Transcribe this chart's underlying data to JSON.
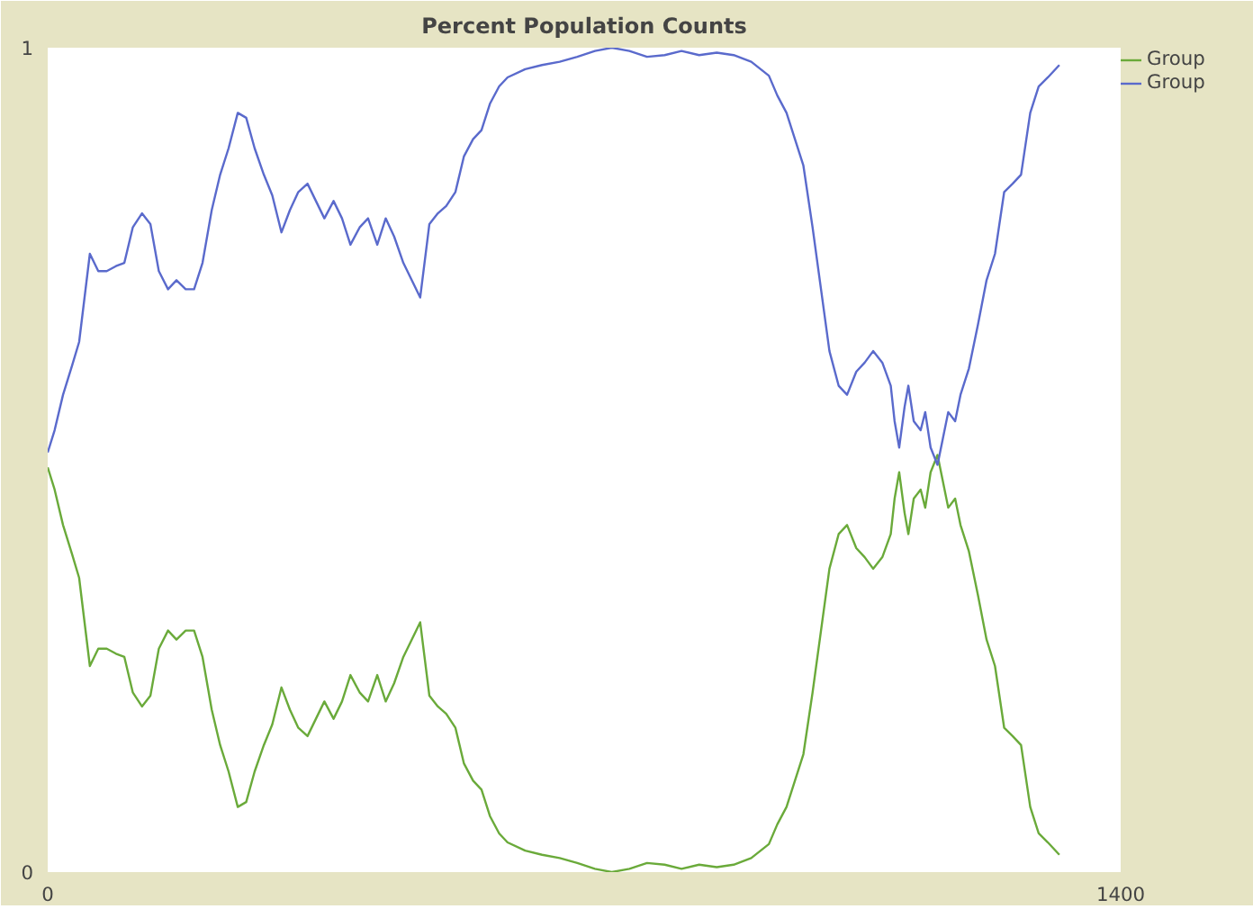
{
  "chart_data": {
    "type": "line",
    "title": "Percent Population Counts",
    "xlim": [
      0,
      1400
    ],
    "xticks": [
      0,
      1400
    ],
    "ylim": [
      0,
      1
    ],
    "yticks": [
      0,
      1
    ],
    "legend": "top right",
    "series": [
      {
        "name": "Group",
        "color": "#6aaa3a",
        "x": [
          0,
          9,
          20,
          32,
          41,
          55,
          66,
          77,
          89,
          100,
          111,
          123,
          134,
          145,
          157,
          168,
          180,
          191,
          202,
          214,
          225,
          236,
          248,
          259,
          270,
          282,
          293,
          305,
          316,
          327,
          339,
          350,
          361,
          373,
          384,
          395,
          407,
          418,
          430,
          441,
          452,
          464,
          475,
          486,
          498,
          509,
          520,
          532,
          543,
          555,
          566,
          577,
          589,
          600,
          623,
          645,
          668,
          691,
          714,
          736,
          759,
          782,
          805,
          827,
          850,
          873,
          895,
          918,
          941,
          952,
          964,
          975,
          986,
          998,
          1009,
          1020,
          1032,
          1043,
          1055,
          1066,
          1077,
          1089,
          1100,
          1105,
          1111,
          1118,
          1123,
          1130,
          1139,
          1145,
          1152,
          1161,
          1168,
          1175,
          1184,
          1191,
          1202,
          1214,
          1225,
          1236,
          1248,
          1259,
          1270,
          1282,
          1293,
          1305,
          1320
        ],
        "values": [
          0.491,
          0.464,
          0.421,
          0.385,
          0.357,
          0.25,
          0.271,
          0.271,
          0.265,
          0.261,
          0.218,
          0.201,
          0.214,
          0.271,
          0.293,
          0.282,
          0.293,
          0.293,
          0.261,
          0.197,
          0.154,
          0.122,
          0.079,
          0.085,
          0.122,
          0.154,
          0.179,
          0.224,
          0.197,
          0.175,
          0.165,
          0.186,
          0.207,
          0.186,
          0.207,
          0.239,
          0.218,
          0.207,
          0.239,
          0.207,
          0.229,
          0.261,
          0.282,
          0.303,
          0.214,
          0.201,
          0.192,
          0.175,
          0.132,
          0.111,
          0.1,
          0.068,
          0.047,
          0.036,
          0.026,
          0.021,
          0.017,
          0.011,
          0.004,
          0.0,
          0.004,
          0.011,
          0.009,
          0.004,
          0.009,
          0.006,
          0.009,
          0.017,
          0.034,
          0.058,
          0.079,
          0.111,
          0.143,
          0.218,
          0.293,
          0.368,
          0.41,
          0.421,
          0.393,
          0.382,
          0.368,
          0.382,
          0.41,
          0.453,
          0.485,
          0.436,
          0.41,
          0.453,
          0.464,
          0.442,
          0.485,
          0.506,
          0.474,
          0.442,
          0.453,
          0.421,
          0.389,
          0.335,
          0.282,
          0.25,
          0.175,
          0.165,
          0.154,
          0.079,
          0.047,
          0.036,
          0.021
        ]
      },
      {
        "name": "Group",
        "color": "#5a6acc",
        "x": [
          0,
          9,
          20,
          32,
          41,
          55,
          66,
          77,
          89,
          100,
          111,
          123,
          134,
          145,
          157,
          168,
          180,
          191,
          202,
          214,
          225,
          236,
          248,
          259,
          270,
          282,
          293,
          305,
          316,
          327,
          339,
          350,
          361,
          373,
          384,
          395,
          407,
          418,
          430,
          441,
          452,
          464,
          475,
          486,
          498,
          509,
          520,
          532,
          543,
          555,
          566,
          577,
          589,
          600,
          623,
          645,
          668,
          691,
          714,
          736,
          759,
          782,
          805,
          827,
          850,
          873,
          895,
          918,
          941,
          952,
          964,
          975,
          986,
          998,
          1009,
          1020,
          1032,
          1043,
          1055,
          1066,
          1077,
          1089,
          1100,
          1105,
          1111,
          1118,
          1123,
          1130,
          1139,
          1145,
          1152,
          1161,
          1168,
          1175,
          1184,
          1191,
          1202,
          1214,
          1225,
          1236,
          1248,
          1259,
          1270,
          1282,
          1293,
          1305,
          1320
        ],
        "values": [
          0.509,
          0.536,
          0.579,
          0.615,
          0.643,
          0.75,
          0.729,
          0.729,
          0.735,
          0.739,
          0.782,
          0.799,
          0.786,
          0.729,
          0.707,
          0.718,
          0.707,
          0.707,
          0.739,
          0.803,
          0.846,
          0.878,
          0.921,
          0.915,
          0.878,
          0.846,
          0.821,
          0.776,
          0.803,
          0.825,
          0.835,
          0.814,
          0.793,
          0.814,
          0.793,
          0.761,
          0.782,
          0.793,
          0.761,
          0.793,
          0.771,
          0.739,
          0.718,
          0.697,
          0.786,
          0.799,
          0.808,
          0.825,
          0.868,
          0.889,
          0.9,
          0.932,
          0.953,
          0.964,
          0.974,
          0.979,
          0.983,
          0.989,
          0.996,
          1.0,
          0.996,
          0.989,
          0.991,
          0.996,
          0.991,
          0.994,
          0.991,
          0.983,
          0.966,
          0.942,
          0.921,
          0.889,
          0.857,
          0.782,
          0.707,
          0.632,
          0.59,
          0.579,
          0.607,
          0.618,
          0.632,
          0.618,
          0.59,
          0.547,
          0.515,
          0.564,
          0.59,
          0.547,
          0.536,
          0.558,
          0.515,
          0.494,
          0.526,
          0.558,
          0.547,
          0.579,
          0.611,
          0.665,
          0.718,
          0.75,
          0.825,
          0.835,
          0.846,
          0.921,
          0.953,
          0.964,
          0.979
        ]
      }
    ]
  }
}
